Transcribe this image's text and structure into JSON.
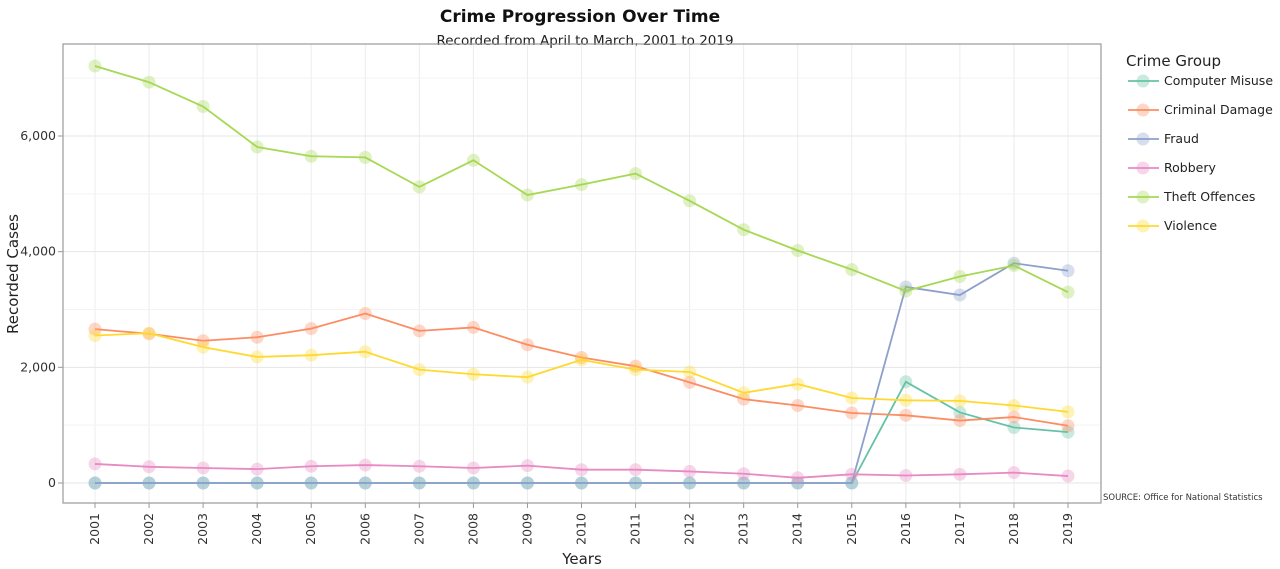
{
  "chart_data": {
    "type": "line",
    "title": "Crime Progression Over Time",
    "subtitle": "Recorded from April to March, 2001 to 2019",
    "xlabel": "Years",
    "ylabel": "Recorded Cases",
    "source": "SOURCE: Office for National Statistics",
    "legend_title": "Crime Group",
    "legend_position": "right",
    "grid": true,
    "ylim": [
      -350,
      7500
    ],
    "yticks": [
      0,
      2000,
      4000,
      6000
    ],
    "ytick_labels": [
      "0",
      "2,000",
      "4,000",
      "6,000"
    ],
    "x": [
      "2001",
      "2002",
      "2003",
      "2004",
      "2005",
      "2006",
      "2007",
      "2008",
      "2009",
      "2010",
      "2011",
      "2012",
      "2013",
      "2014",
      "2015",
      "2016",
      "2017",
      "2018",
      "2019"
    ],
    "series": [
      {
        "name": "Computer Misuse",
        "color": "#66c2a5",
        "values": [
          0,
          0,
          0,
          0,
          0,
          0,
          0,
          0,
          0,
          0,
          0,
          0,
          0,
          0,
          0,
          1750,
          1220,
          960,
          880
        ]
      },
      {
        "name": "Criminal Damage",
        "color": "#fc8d62",
        "values": [
          2660,
          2580,
          2460,
          2520,
          2670,
          2930,
          2630,
          2690,
          2390,
          2170,
          2020,
          1740,
          1450,
          1340,
          1210,
          1170,
          1080,
          1140,
          990
        ]
      },
      {
        "name": "Fraud",
        "color": "#8da0cb",
        "values": [
          0,
          0,
          0,
          0,
          0,
          0,
          0,
          0,
          0,
          0,
          0,
          0,
          0,
          0,
          0,
          3390,
          3250,
          3800,
          3670
        ]
      },
      {
        "name": "Robbery",
        "color": "#e78ac3",
        "values": [
          330,
          280,
          260,
          240,
          290,
          310,
          290,
          260,
          300,
          230,
          230,
          200,
          160,
          90,
          150,
          130,
          150,
          180,
          120
        ]
      },
      {
        "name": "Theft Offences",
        "color": "#a6d854",
        "values": [
          7210,
          6930,
          6510,
          5810,
          5650,
          5630,
          5120,
          5580,
          4980,
          5160,
          5350,
          4880,
          4380,
          4020,
          3690,
          3320,
          3570,
          3760,
          3300
        ]
      },
      {
        "name": "Violence",
        "color": "#ffd92f",
        "values": [
          2550,
          2590,
          2350,
          2180,
          2210,
          2270,
          1960,
          1880,
          1830,
          2130,
          1960,
          1920,
          1560,
          1710,
          1470,
          1430,
          1420,
          1340,
          1230
        ]
      }
    ]
  }
}
